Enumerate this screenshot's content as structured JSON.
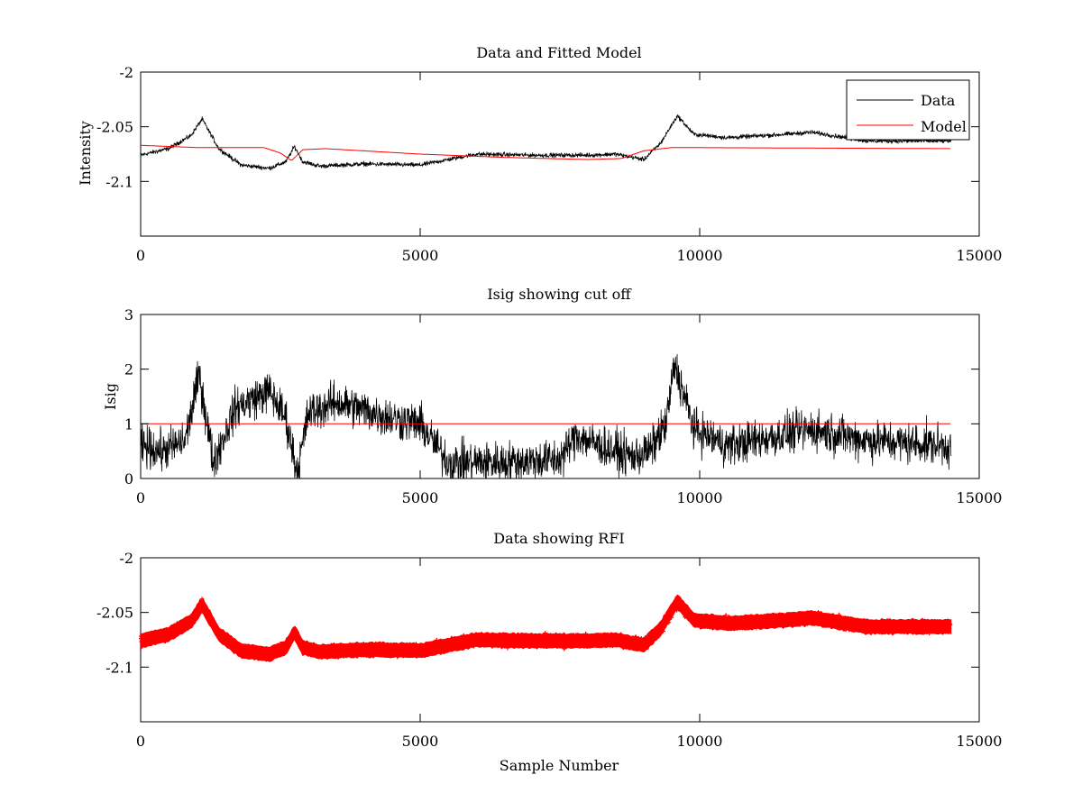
{
  "chart_data": [
    {
      "type": "line",
      "title": "Data and Fitted Model",
      "xlabel": "",
      "ylabel": "Intensity",
      "xlim": [
        0,
        15000
      ],
      "ylim": [
        -2.15,
        -2
      ],
      "xticks": [
        0,
        5000,
        10000,
        15000
      ],
      "yticks": [
        -2,
        -2.05,
        -2.1
      ],
      "ytick_labels": [
        "-2",
        "-2.05",
        "-2.1"
      ],
      "legend": {
        "position": "top-right",
        "entries": [
          "Data",
          "Model"
        ]
      },
      "series": [
        {
          "name": "Data",
          "color": "#000000",
          "style": "noisy-line",
          "noise": 0.003,
          "x": [
            0,
            500,
            900,
            1100,
            1400,
            1800,
            2300,
            2600,
            2750,
            2900,
            3200,
            4000,
            5000,
            6000,
            7000,
            8000,
            8500,
            9000,
            9300,
            9600,
            9900,
            10500,
            11500,
            12000,
            13000,
            14500
          ],
          "y": [
            -2.076,
            -2.07,
            -2.058,
            -2.043,
            -2.07,
            -2.085,
            -2.088,
            -2.082,
            -2.068,
            -2.082,
            -2.086,
            -2.084,
            -2.085,
            -2.075,
            -2.076,
            -2.076,
            -2.075,
            -2.08,
            -2.065,
            -2.04,
            -2.057,
            -2.06,
            -2.057,
            -2.055,
            -2.063,
            -2.063
          ]
        },
        {
          "name": "Model",
          "color": "#ff0000",
          "style": "line",
          "noise": 0,
          "x": [
            0,
            1000,
            2200,
            2500,
            2700,
            2900,
            3300,
            5000,
            6500,
            8000,
            8600,
            9000,
            9500,
            14500
          ],
          "y": [
            -2.067,
            -2.069,
            -2.069,
            -2.074,
            -2.081,
            -2.071,
            -2.07,
            -2.075,
            -2.078,
            -2.08,
            -2.079,
            -2.072,
            -2.069,
            -2.07
          ]
        }
      ]
    },
    {
      "type": "line",
      "title": "Isig showing cut off",
      "xlabel": "",
      "ylabel": "Isig",
      "xlim": [
        0,
        15000
      ],
      "ylim": [
        0,
        3
      ],
      "xticks": [
        0,
        5000,
        10000,
        15000
      ],
      "yticks": [
        0,
        1,
        2,
        3
      ],
      "ytick_labels": [
        "0",
        "1",
        "2",
        "3"
      ],
      "series": [
        {
          "name": "Isig",
          "color": "#000000",
          "style": "noisy-line",
          "noise": 0.55,
          "floor": 0,
          "x": [
            0,
            400,
            800,
            1050,
            1300,
            1700,
            2300,
            2600,
            2800,
            3000,
            3500,
            4500,
            5000,
            5500,
            6500,
            7500,
            7800,
            8200,
            8800,
            9100,
            9400,
            9550,
            9900,
            10500,
            11500,
            12000,
            13000,
            14500
          ],
          "y": [
            0.6,
            0.5,
            0.7,
            1.9,
            0.3,
            1.3,
            1.6,
            1.1,
            0.1,
            1.2,
            1.4,
            1.1,
            1.0,
            0.3,
            0.3,
            0.35,
            0.8,
            0.6,
            0.4,
            0.5,
            1.0,
            2.1,
            0.9,
            0.6,
            0.8,
            0.9,
            0.7,
            0.6
          ]
        },
        {
          "name": "cut off",
          "color": "#ff0000",
          "style": "line",
          "noise": 0,
          "x": [
            0,
            14500
          ],
          "y": [
            1,
            1
          ]
        }
      ]
    },
    {
      "type": "scatter",
      "title": "Data showing RFI",
      "xlabel": "Sample Number",
      "ylabel": "",
      "xlim": [
        0,
        15000
      ],
      "ylim": [
        -2.15,
        -2
      ],
      "xticks": [
        0,
        5000,
        10000,
        15000
      ],
      "yticks": [
        -2,
        -2.05,
        -2.1
      ],
      "ytick_labels": [
        "-2",
        "-2.05",
        "-2.1"
      ],
      "series": [
        {
          "name": "RFI",
          "color": "#ff0000",
          "style": "thick-band",
          "noise": 0.0035,
          "x": [
            0,
            500,
            900,
            1100,
            1400,
            1800,
            2300,
            2600,
            2750,
            2900,
            3200,
            4000,
            5000,
            6000,
            7000,
            8000,
            8500,
            9000,
            9300,
            9600,
            9900,
            10500,
            11500,
            12000,
            13000,
            14500
          ],
          "y": [
            -2.076,
            -2.07,
            -2.058,
            -2.043,
            -2.07,
            -2.085,
            -2.088,
            -2.082,
            -2.068,
            -2.082,
            -2.086,
            -2.084,
            -2.085,
            -2.075,
            -2.076,
            -2.076,
            -2.075,
            -2.08,
            -2.065,
            -2.04,
            -2.057,
            -2.06,
            -2.057,
            -2.055,
            -2.063,
            -2.063
          ]
        }
      ]
    }
  ]
}
